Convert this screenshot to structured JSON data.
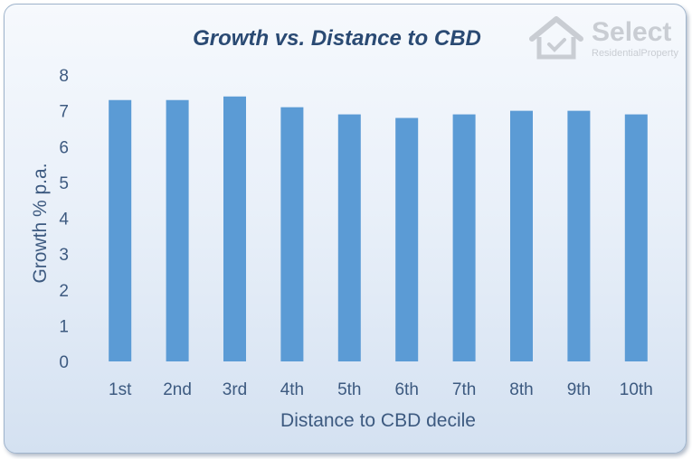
{
  "logo": {
    "name": "Select",
    "tagline": "ResidentialProperty"
  },
  "chart_data": {
    "type": "bar",
    "title": "Growth vs. Distance to CBD",
    "xlabel": "Distance to CBD decile",
    "ylabel": "Growth % p.a.",
    "categories": [
      "1st",
      "2nd",
      "3rd",
      "4th",
      "5th",
      "6th",
      "7th",
      "8th",
      "9th",
      "10th"
    ],
    "values": [
      7.3,
      7.3,
      7.4,
      7.1,
      6.9,
      6.8,
      6.9,
      7.0,
      7.0,
      6.9
    ],
    "ylim": [
      0,
      8
    ],
    "yticks": [
      0,
      1,
      2,
      3,
      4,
      5,
      6,
      7,
      8
    ],
    "grid": false,
    "legend": "none",
    "bar_color": "#5b9bd5"
  }
}
